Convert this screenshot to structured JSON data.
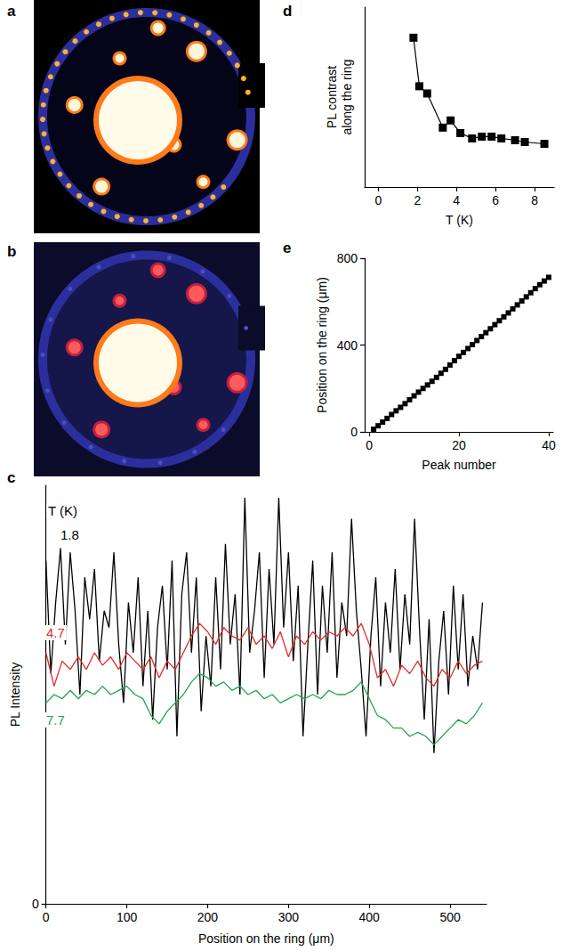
{
  "chart_data": [
    {
      "type": "image",
      "panel": "a"
    },
    {
      "type": "image",
      "panel": "b"
    },
    {
      "type": "line",
      "panel": "c",
      "x_label": "Position on the ring (μm)",
      "y_label": "PL Intensity",
      "xlim": [
        0,
        545
      ],
      "xticks": [
        0,
        100,
        200,
        300,
        400,
        500
      ],
      "ylim": [
        0,
        100
      ],
      "yticks": [
        0
      ],
      "annotations": [
        "T (K)"
      ],
      "series": [
        {
          "name": "1.8",
          "color": "#000000",
          "x": [
            0,
            6,
            12,
            18,
            24,
            30,
            36,
            42,
            48,
            54,
            60,
            66,
            72,
            78,
            84,
            90,
            96,
            102,
            108,
            114,
            120,
            126,
            132,
            138,
            144,
            150,
            156,
            162,
            168,
            174,
            180,
            186,
            192,
            198,
            204,
            210,
            216,
            222,
            228,
            234,
            240,
            246,
            252,
            258,
            264,
            270,
            276,
            282,
            288,
            294,
            300,
            306,
            312,
            318,
            324,
            330,
            336,
            342,
            348,
            354,
            360,
            366,
            372,
            378,
            384,
            390,
            396,
            402,
            408,
            414,
            420,
            426,
            432,
            438,
            444,
            450,
            456,
            462,
            468,
            474,
            480,
            486,
            492,
            498,
            504,
            510,
            516,
            522,
            528,
            534,
            540
          ],
          "values": [
            82,
            55,
            72,
            85,
            62,
            84,
            70,
            50,
            78,
            68,
            80,
            58,
            70,
            66,
            84,
            62,
            48,
            72,
            60,
            78,
            52,
            70,
            44,
            66,
            76,
            56,
            82,
            40,
            74,
            84,
            60,
            78,
            46,
            64,
            52,
            78,
            56,
            86,
            62,
            74,
            50,
            97,
            60,
            70,
            84,
            54,
            80,
            62,
            97,
            66,
            84,
            58,
            76,
            40,
            62,
            82,
            50,
            76,
            60,
            84,
            54,
            72,
            64,
            92,
            70,
            56,
            40,
            64,
            78,
            52,
            72,
            60,
            80,
            56,
            74,
            62,
            92,
            66,
            44,
            68,
            36,
            58,
            70,
            50,
            76,
            56,
            74,
            52,
            64,
            56,
            72
          ]
        },
        {
          "name": "4.7",
          "color": "#e32b2b",
          "x": [
            0,
            10,
            20,
            30,
            40,
            50,
            60,
            70,
            80,
            90,
            100,
            110,
            120,
            130,
            140,
            150,
            160,
            170,
            180,
            190,
            200,
            210,
            220,
            230,
            240,
            250,
            260,
            270,
            280,
            290,
            300,
            310,
            320,
            330,
            340,
            350,
            360,
            370,
            380,
            390,
            400,
            410,
            420,
            430,
            440,
            450,
            460,
            470,
            480,
            490,
            500,
            510,
            520,
            530,
            540
          ],
          "values": [
            60,
            52,
            58,
            56,
            59,
            56,
            60,
            57,
            59,
            56,
            60,
            58,
            56,
            59,
            54,
            58,
            56,
            60,
            64,
            67,
            65,
            62,
            66,
            64,
            63,
            66,
            62,
            64,
            61,
            65,
            59,
            64,
            62,
            65,
            63,
            65,
            64,
            66,
            64,
            67,
            62,
            54,
            56,
            52,
            57,
            55,
            58,
            54,
            52,
            56,
            54,
            58,
            55,
            57,
            58
          ]
        },
        {
          "name": "7.7",
          "color": "#1fa64a",
          "x": [
            0,
            10,
            20,
            30,
            40,
            50,
            60,
            70,
            80,
            90,
            100,
            110,
            120,
            130,
            140,
            150,
            160,
            170,
            180,
            190,
            200,
            210,
            220,
            230,
            240,
            250,
            260,
            270,
            280,
            290,
            300,
            310,
            320,
            330,
            340,
            350,
            360,
            370,
            380,
            390,
            400,
            410,
            420,
            430,
            440,
            450,
            460,
            470,
            480,
            490,
            500,
            510,
            520,
            530,
            540
          ],
          "values": [
            48,
            50,
            49,
            51,
            49,
            51,
            50,
            52,
            50,
            51,
            52,
            50,
            49,
            45,
            43,
            46,
            48,
            50,
            53,
            55,
            54,
            52,
            53,
            51,
            52,
            50,
            51,
            49,
            50,
            48,
            49,
            50,
            49,
            50,
            49,
            51,
            50,
            50,
            51,
            53,
            49,
            45,
            44,
            42,
            42,
            40,
            41,
            40,
            38,
            40,
            42,
            44,
            43,
            45,
            48
          ]
        }
      ]
    },
    {
      "type": "line",
      "panel": "d",
      "x_label": "T (K)",
      "y_label": "PL contrast along the ring",
      "x": [
        1.8,
        2.1,
        2.5,
        3.3,
        3.7,
        4.2,
        4.8,
        5.3,
        5.8,
        6.3,
        7.0,
        7.5,
        8.5
      ],
      "values": [
        0.83,
        0.56,
        0.52,
        0.33,
        0.37,
        0.3,
        0.27,
        0.28,
        0.28,
        0.27,
        0.26,
        0.25,
        0.24
      ],
      "xlim": [
        -0.7,
        9
      ],
      "xticks": [
        0,
        2,
        4,
        6,
        8
      ],
      "ylim": [
        0,
        1
      ],
      "yticks": [],
      "tick_labels": "x",
      "marker": "square",
      "line_style": "solid",
      "color": "#000000"
    },
    {
      "type": "line",
      "panel": "e",
      "x_label": "Peak number",
      "y_label": "Position on the ring (μm)",
      "x": [
        1,
        2,
        3,
        4,
        5,
        6,
        7,
        8,
        9,
        10,
        11,
        12,
        13,
        14,
        15,
        16,
        17,
        18,
        19,
        20,
        21,
        22,
        23,
        24,
        25,
        26,
        27,
        28,
        29,
        30,
        31,
        32,
        33,
        34,
        35,
        36,
        37,
        38,
        39,
        40
      ],
      "values": [
        12,
        28,
        45,
        62,
        80,
        97,
        113,
        130,
        148,
        166,
        183,
        200,
        216,
        233,
        251,
        270,
        288,
        308,
        328,
        348,
        366,
        384,
        402,
        421,
        439,
        457,
        475,
        494,
        512,
        530,
        548,
        567,
        585,
        603,
        622,
        641,
        660,
        678,
        695,
        712
      ],
      "xlim": [
        -1,
        41
      ],
      "xticks": [
        0,
        20,
        40
      ],
      "ylim": [
        0,
        800
      ],
      "yticks": [
        0,
        400,
        800
      ],
      "marker": "square",
      "line_style": "solid",
      "color": "#000000"
    }
  ]
}
